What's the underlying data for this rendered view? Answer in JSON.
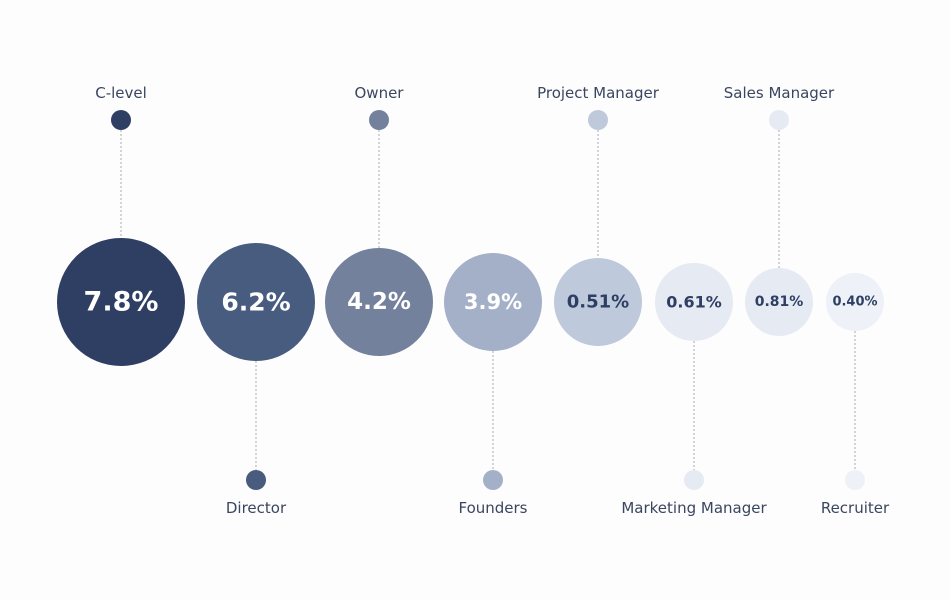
{
  "chart_data": {
    "type": "bubble",
    "title": "",
    "legend": "none",
    "grid": false,
    "items": [
      {
        "label": "C-level",
        "value": 7.8,
        "display": "7.8%",
        "color": "#2e3f63",
        "text_color": "#ffffff",
        "label_side": "top"
      },
      {
        "label": "Director",
        "value": 6.2,
        "display": "6.2%",
        "color": "#485c80",
        "text_color": "#ffffff",
        "label_side": "bottom"
      },
      {
        "label": "Owner",
        "value": 4.2,
        "display": "4.2%",
        "color": "#73819d",
        "text_color": "#ffffff",
        "label_side": "top"
      },
      {
        "label": "Founders",
        "value": 3.9,
        "display": "3.9%",
        "color": "#a4b0c8",
        "text_color": "#ffffff",
        "label_side": "bottom"
      },
      {
        "label": "Project Manager",
        "value": 0.51,
        "display": "0.51%",
        "color": "#bfc9dc",
        "text_color": "#2e3f63",
        "label_side": "top"
      },
      {
        "label": "Marketing Manager",
        "value": 0.61,
        "display": "0.61%",
        "color": "#e6eaf3",
        "text_color": "#2e3f63",
        "label_side": "bottom"
      },
      {
        "label": "Sales Manager",
        "value": 0.81,
        "display": "0.81%",
        "color": "#e6eaf3",
        "text_color": "#2e3f63",
        "label_side": "top"
      },
      {
        "label": "Recruiter",
        "value": 0.4,
        "display": "0.40%",
        "color": "#eef1f7",
        "text_color": "#2e3f63",
        "label_side": "bottom"
      }
    ]
  }
}
